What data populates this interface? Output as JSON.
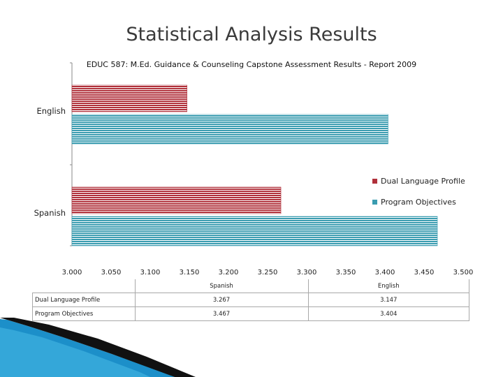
{
  "slide": {
    "title": "Statistical Analysis Results"
  },
  "colors": {
    "dual": "#b0303a",
    "program": "#3a9cb0",
    "text": "#3a3a3a"
  },
  "chart_data": {
    "type": "bar",
    "orientation": "horizontal",
    "title": "EDUC 587: M.Ed. Guidance & Counseling Capstone Assessment Results - Report 2009",
    "categories": [
      "English",
      "Spanish"
    ],
    "series": [
      {
        "name": "Dual Language Profile",
        "color": "#b0303a",
        "values": [
          3.147,
          3.267
        ]
      },
      {
        "name": "Program Objectives",
        "color": "#3a9cb0",
        "values": [
          3.404,
          3.467
        ]
      }
    ],
    "xlim": [
      3.0,
      3.5
    ],
    "xticks": [
      "3.000",
      "3.050",
      "3.100",
      "3.150",
      "3.200",
      "3.250",
      "3.300",
      "3.350",
      "3.400",
      "3.450",
      "3.500"
    ],
    "legend_position": "right",
    "grid": false
  },
  "table": {
    "columns": [
      "Spanish",
      "English"
    ],
    "rows": [
      {
        "label": "Dual Language Profile",
        "values": [
          "3.267",
          "3.147"
        ]
      },
      {
        "label": "Program Objectives",
        "values": [
          "3.467",
          "3.404"
        ]
      }
    ]
  }
}
